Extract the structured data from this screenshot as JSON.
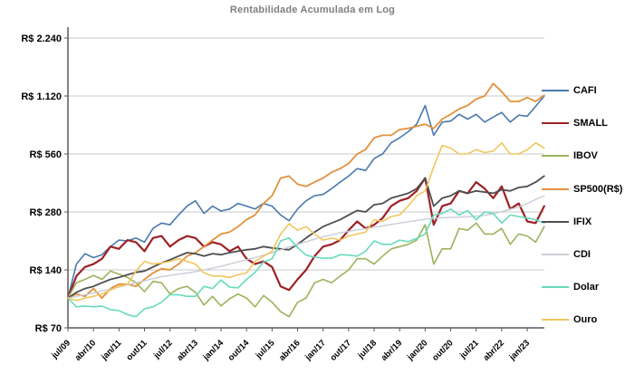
{
  "chart_data": {
    "type": "line",
    "title": "Rentabilidade Acumulada em Log",
    "y_scale": "log-base2",
    "base_value": 100,
    "start_label": "jul/09",
    "points_interval_months": 3,
    "legend_position": "right",
    "grid": "horizontal-only",
    "y_ticks": [
      {
        "label": "R$ 2.240",
        "value": 2240
      },
      {
        "label": "R$ 1.120",
        "value": 1120
      },
      {
        "label": "R$ 560",
        "value": 560
      },
      {
        "label": "R$ 280",
        "value": 280
      },
      {
        "label": "R$ 140",
        "value": 140
      },
      {
        "label": "R$ 70",
        "value": 70
      }
    ],
    "x_tick_labels": [
      "jul/09",
      "abr/10",
      "jan/11",
      "out/11",
      "jul/12",
      "abr/13",
      "jan/14",
      "out/14",
      "jul/15",
      "abr/16",
      "jan/17",
      "out/17",
      "jul/18",
      "abr/19",
      "jan/20",
      "out/20",
      "jul/21",
      "abr/22",
      "jan/23"
    ],
    "x_tick_interval_months": 9,
    "series": [
      {
        "name": "CAFI",
        "color": "#4a79ad",
        "width": 1.6,
        "values": [
          100,
          150,
          170,
          162,
          168,
          185,
          200,
          198,
          205,
          195,
          230,
          245,
          240,
          270,
          300,
          320,
          275,
          300,
          283,
          290,
          310,
          300,
          290,
          310,
          300,
          270,
          252,
          290,
          320,
          340,
          345,
          370,
          400,
          430,
          470,
          460,
          530,
          560,
          640,
          680,
          730,
          800,
          1000,
          700,
          820,
          830,
          900,
          850,
          900,
          820,
          870,
          920,
          820,
          890,
          880,
          990,
          1120
        ]
      },
      {
        "name": "SMALL",
        "color": "#9c2126",
        "width": 2.2,
        "values": [
          100,
          130,
          145,
          150,
          160,
          185,
          180,
          200,
          195,
          175,
          205,
          210,
          185,
          200,
          210,
          205,
          185,
          195,
          190,
          175,
          185,
          160,
          150,
          155,
          145,
          115,
          110,
          125,
          140,
          165,
          185,
          190,
          200,
          225,
          250,
          230,
          240,
          260,
          300,
          320,
          330,
          360,
          420,
          240,
          300,
          310,
          360,
          350,
          400,
          370,
          330,
          380,
          290,
          310,
          250,
          245,
          300
        ]
      },
      {
        "name": "IBOV",
        "color": "#9cb35c",
        "width": 1.6,
        "values": [
          100,
          120,
          125,
          131,
          125,
          138,
          133,
          128,
          120,
          108,
          122,
          120,
          105,
          112,
          115,
          107,
          92,
          102,
          91,
          99,
          105,
          100,
          90,
          103,
          95,
          85,
          80,
          95,
          100,
          120,
          125,
          120,
          130,
          140,
          160,
          160,
          150,
          165,
          180,
          185,
          190,
          200,
          240,
          150,
          180,
          180,
          230,
          225,
          245,
          215,
          215,
          230,
          190,
          215,
          210,
          195,
          235
        ]
      },
      {
        "name": "SP500(R$)",
        "color": "#e2923d",
        "width": 1.8,
        "values": [
          100,
          105,
          102,
          112,
          100,
          112,
          118,
          118,
          115,
          125,
          135,
          142,
          140,
          150,
          165,
          172,
          185,
          200,
          215,
          220,
          235,
          255,
          270,
          310,
          340,
          420,
          430,
          390,
          380,
          400,
          420,
          450,
          470,
          500,
          560,
          590,
          680,
          700,
          700,
          750,
          760,
          780,
          800,
          760,
          850,
          900,
          960,
          1000,
          1080,
          1120,
          1300,
          1180,
          1050,
          1050,
          1100,
          1050,
          1130
        ]
      },
      {
        "name": "IFIX",
        "color": "#4f4f4f",
        "width": 1.8,
        "values": [
          100,
          107,
          112,
          115,
          120,
          125,
          128,
          132,
          136,
          138,
          145,
          152,
          158,
          165,
          172,
          170,
          165,
          170,
          168,
          172,
          175,
          178,
          180,
          185,
          182,
          180,
          178,
          190,
          205,
          220,
          235,
          245,
          255,
          270,
          285,
          280,
          305,
          310,
          330,
          340,
          350,
          370,
          420,
          300,
          330,
          340,
          360,
          350,
          360,
          355,
          350,
          365,
          360,
          375,
          380,
          400,
          430
        ]
      },
      {
        "name": "CDI",
        "color": "#c9cdd6",
        "width": 1.4,
        "values": [
          100,
          102,
          104,
          106,
          109,
          111,
          114,
          117,
          120,
          123,
          126,
          129,
          131,
          133,
          135,
          137,
          140,
          143,
          146,
          150,
          154,
          158,
          162,
          167,
          172,
          178,
          184,
          190,
          196,
          202,
          208,
          213,
          218,
          222,
          226,
          229,
          233,
          237,
          241,
          245,
          249,
          253,
          257,
          259,
          261,
          262,
          263,
          264,
          266,
          269,
          274,
          281,
          289,
          297,
          310,
          325,
          340
        ]
      },
      {
        "name": "Dolar",
        "color": "#67dbbc",
        "width": 1.6,
        "values": [
          100,
          90,
          91,
          90,
          91,
          87,
          86,
          82,
          80,
          88,
          90,
          95,
          104,
          104,
          102,
          102,
          115,
          112,
          124,
          114,
          113,
          125,
          136,
          154,
          160,
          198,
          205,
          183,
          167,
          163,
          161,
          161,
          168,
          167,
          165,
          175,
          198,
          190,
          190,
          200,
          196,
          204,
          215,
          270,
          275,
          290,
          270,
          285,
          255,
          280,
          275,
          245,
          270,
          265,
          260,
          255,
          245
        ]
      },
      {
        "name": "Ouro",
        "color": "#f2c65e",
        "width": 1.6,
        "values": [
          100,
          97,
          100,
          102,
          105,
          110,
          115,
          118,
          138,
          155,
          150,
          152,
          155,
          160,
          155,
          150,
          135,
          130,
          130,
          128,
          132,
          135,
          155,
          165,
          175,
          215,
          243,
          225,
          235,
          215,
          200,
          205,
          200,
          210,
          215,
          220,
          255,
          250,
          265,
          270,
          300,
          340,
          360,
          480,
          620,
          600,
          560,
          560,
          590,
          570,
          580,
          640,
          560,
          560,
          590,
          640,
          600
        ]
      }
    ]
  }
}
